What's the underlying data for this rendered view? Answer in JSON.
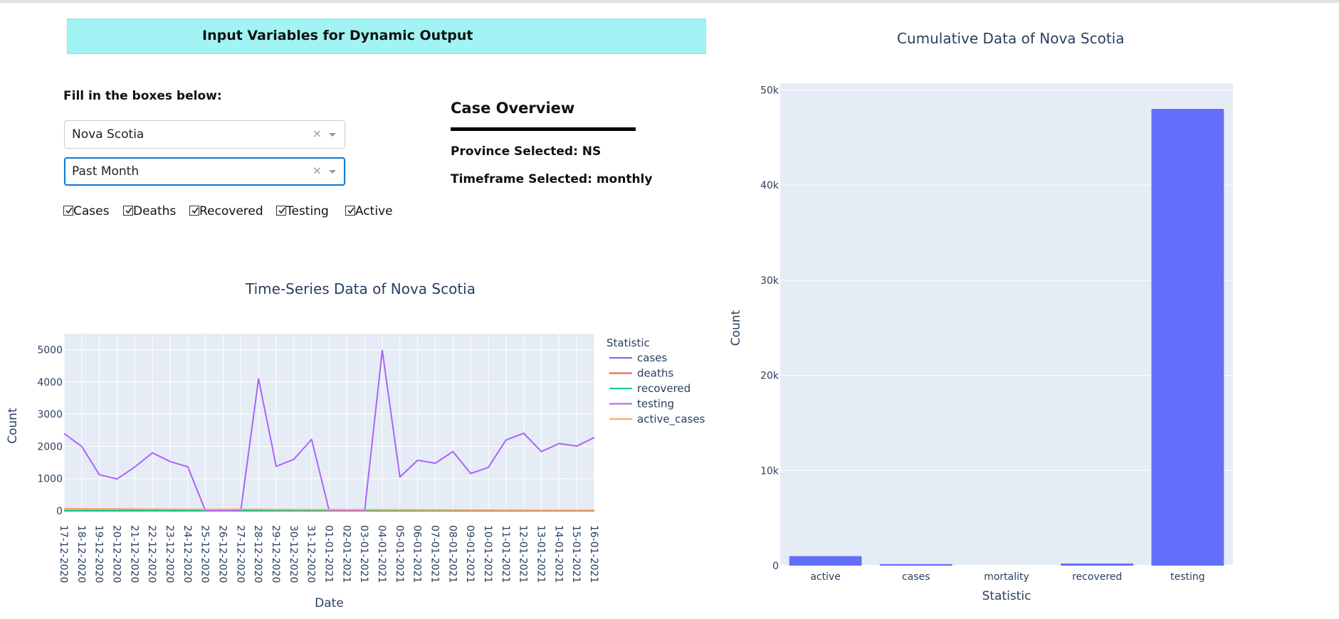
{
  "banner": {
    "title": "Input Variables for Dynamic Output"
  },
  "form": {
    "fill_label": "Fill in the boxes below:",
    "province_value": "Nova Scotia",
    "timeframe_value": "Past Month",
    "clear_symbol": "×",
    "checkboxes": [
      {
        "label": "Cases",
        "checked": true
      },
      {
        "label": "Deaths",
        "checked": true
      },
      {
        "label": "Recovered",
        "checked": true
      },
      {
        "label": "Testing",
        "checked": true
      },
      {
        "label": "Active",
        "checked": true
      }
    ]
  },
  "overview": {
    "title": "Case Overview",
    "province_line": "Province Selected: NS",
    "timeframe_line": "Timeframe Selected: monthly"
  },
  "colors": {
    "banner": "#a2f3f3",
    "plot_bg": "#e5ecf6",
    "cases": "#636efa",
    "deaths": "#ef553b",
    "recovered": "#00cc96",
    "testing": "#ab63fa",
    "active_cases": "#ffa15a",
    "bar": "#636efa"
  },
  "chart_data": [
    {
      "type": "line",
      "title": "Time-Series Data of Nova Scotia",
      "xlabel": "Date",
      "ylabel": "Count",
      "legend_title": "Statistic",
      "ylim": [
        0,
        5000
      ],
      "yticks": [
        0,
        1000,
        2000,
        3000,
        4000,
        5000
      ],
      "categories": [
        "17-12-2020",
        "18-12-2020",
        "19-12-2020",
        "20-12-2020",
        "21-12-2020",
        "22-12-2020",
        "23-12-2020",
        "24-12-2020",
        "25-12-2020",
        "26-12-2020",
        "27-12-2020",
        "28-12-2020",
        "29-12-2020",
        "30-12-2020",
        "31-12-2020",
        "01-01-2021",
        "02-01-2021",
        "03-01-2021",
        "04-01-2021",
        "05-01-2021",
        "06-01-2021",
        "07-01-2021",
        "08-01-2021",
        "09-01-2021",
        "10-01-2021",
        "11-01-2021",
        "12-01-2021",
        "13-01-2021",
        "14-01-2021",
        "15-01-2021",
        "16-01-2021"
      ],
      "series": [
        {
          "name": "cases",
          "values": [
            8,
            6,
            5,
            4,
            6,
            5,
            5,
            4,
            0,
            0,
            0,
            10,
            5,
            4,
            6,
            0,
            0,
            0,
            7,
            3,
            4,
            5,
            3,
            2,
            3,
            4,
            5,
            4,
            3,
            3,
            4
          ]
        },
        {
          "name": "deaths",
          "values": [
            0,
            0,
            0,
            0,
            0,
            0,
            0,
            0,
            0,
            0,
            0,
            0,
            0,
            0,
            0,
            0,
            0,
            0,
            0,
            0,
            0,
            0,
            0,
            0,
            0,
            0,
            0,
            0,
            0,
            0,
            0
          ]
        },
        {
          "name": "recovered",
          "values": [
            10,
            12,
            8,
            9,
            11,
            7,
            8,
            9,
            0,
            0,
            0,
            15,
            9,
            8,
            7,
            0,
            0,
            0,
            12,
            6,
            7,
            8,
            6,
            5,
            5,
            6,
            7,
            5,
            6,
            6,
            5
          ]
        },
        {
          "name": "testing",
          "values": [
            2400,
            2000,
            1120,
            990,
            1360,
            1800,
            1530,
            1370,
            0,
            0,
            20,
            4100,
            1380,
            1600,
            2220,
            0,
            0,
            0,
            4980,
            1050,
            1570,
            1480,
            1840,
            1160,
            1350,
            2200,
            2410,
            1840,
            2090,
            2010,
            2280
          ]
        },
        {
          "name": "active_cases",
          "values": [
            70,
            65,
            62,
            58,
            55,
            52,
            50,
            47,
            47,
            47,
            47,
            44,
            40,
            38,
            36,
            36,
            36,
            36,
            32,
            30,
            28,
            27,
            25,
            23,
            22,
            20,
            19,
            18,
            17,
            16,
            15
          ]
        }
      ]
    },
    {
      "type": "bar",
      "title": "Cumulative Data of Nova Scotia",
      "xlabel": "Statistic",
      "ylabel": "Count",
      "ylim": [
        0,
        50000
      ],
      "yticks": [
        0,
        10000,
        20000,
        30000,
        40000,
        50000
      ],
      "ytick_labels": [
        "0",
        "10k",
        "20k",
        "30k",
        "40k",
        "50k"
      ],
      "categories": [
        "active",
        "cases",
        "mortality",
        "recovered",
        "testing"
      ],
      "values": [
        1000,
        160,
        0,
        220,
        48000
      ]
    }
  ]
}
